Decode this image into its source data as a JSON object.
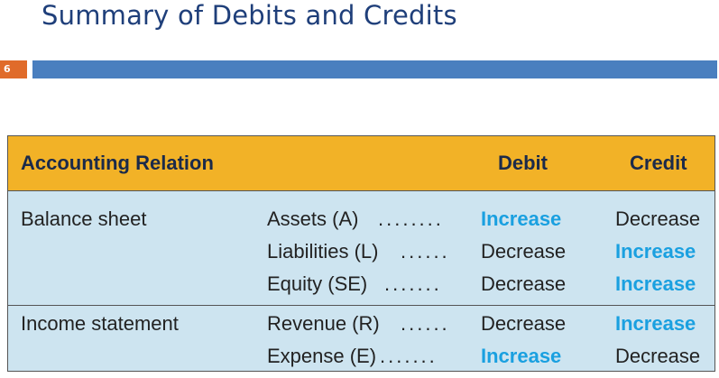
{
  "slide": {
    "title": "Summary of Debits and Credits",
    "page_number": "6"
  },
  "table": {
    "headers": {
      "relation": "Accounting Relation",
      "debit": "Debit",
      "credit": "Credit"
    },
    "sections": [
      {
        "label": "Balance sheet",
        "rows": [
          {
            "account": "Assets (A)",
            "dots": "........",
            "debit": "Increase",
            "credit": "Decrease"
          },
          {
            "account": "Liabilities (L)",
            "dots": "......",
            "debit": "Decrease",
            "credit": "Increase"
          },
          {
            "account": "Equity (SE)",
            "dots": ".......",
            "debit": "Decrease",
            "credit": "Increase"
          }
        ]
      },
      {
        "label": "Income statement",
        "rows": [
          {
            "account": "Revenue (R)",
            "dots": "......",
            "debit": "Decrease",
            "credit": "Increase"
          },
          {
            "account": "Expense (E)",
            "dots": ".......",
            "debit": "Increase",
            "credit": "Decrease"
          }
        ]
      }
    ]
  },
  "colors": {
    "title": "#1f3f7a",
    "title_bar": "#4a7fbf",
    "page_number_bg": "#e06b2a",
    "header_bg": "#f2b227",
    "table_bg": "#cde4f0",
    "increase_highlight": "#1aa0e0"
  }
}
